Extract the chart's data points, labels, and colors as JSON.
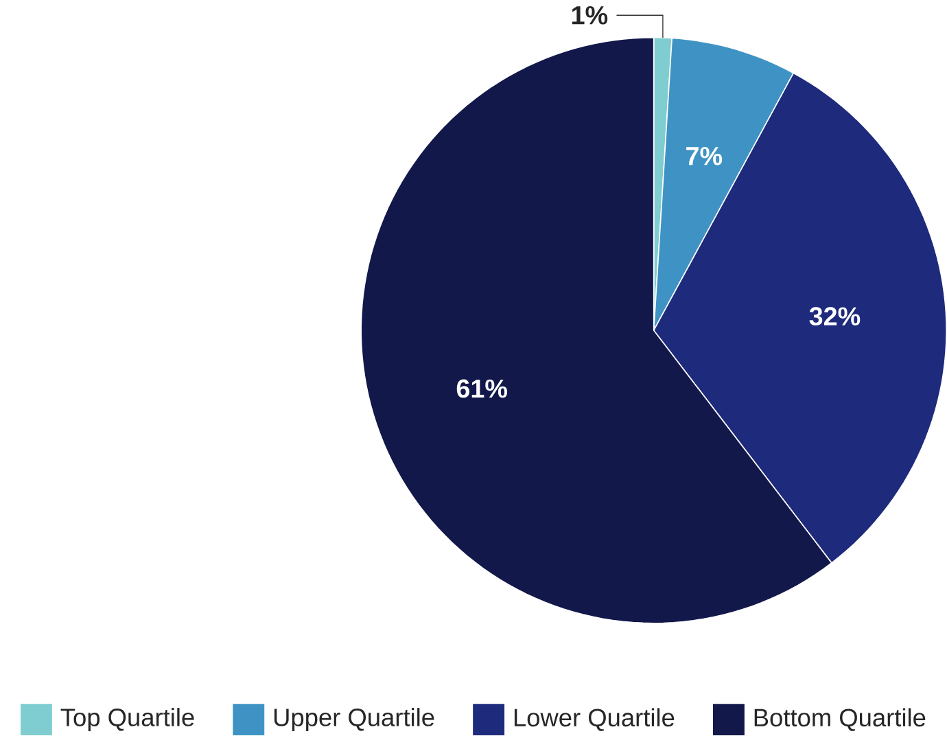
{
  "chart_data": {
    "type": "pie",
    "categories": [
      "Top Quartile",
      "Upper Quartile",
      "Lower Quartile",
      "Bottom Quartile"
    ],
    "values": [
      1,
      7,
      32,
      61
    ],
    "colors": [
      "#7fcdd0",
      "#3f93c4",
      "#1e2a7c",
      "#12184a"
    ],
    "value_labels": [
      "1%",
      "7%",
      "32%",
      "61%"
    ],
    "legend": "bottom"
  }
}
